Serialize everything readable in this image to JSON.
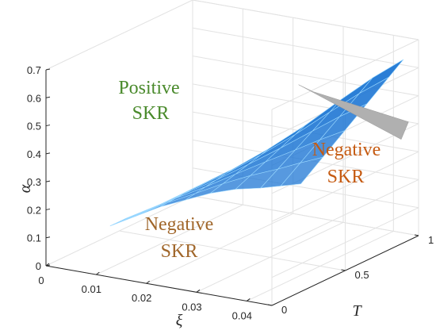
{
  "chart_data": {
    "type": "surface3d",
    "xlabel": "ξ",
    "ylabel": "T",
    "zlabel": "α",
    "xlim": [
      0,
      0.045
    ],
    "ylim": [
      0,
      1
    ],
    "zlim": [
      0,
      0.7
    ],
    "x_ticks": [
      "0",
      "0.01",
      "0.02",
      "0.03",
      "0.04"
    ],
    "y_ticks": [
      "0",
      "0.5",
      "1"
    ],
    "z_ticks": [
      "0",
      "0.1",
      "0.2",
      "0.3",
      "0.4",
      "0.5",
      "0.6",
      "0.7"
    ],
    "grid": true,
    "surface": {
      "xi_samples": [
        0.004,
        0.009,
        0.014,
        0.019,
        0.024,
        0.029,
        0.034,
        0.038,
        0.042
      ],
      "t_samples": [
        0.3,
        0.45,
        0.6,
        0.75,
        0.9,
        1.0
      ],
      "alpha_lower": [
        0.08,
        0.13,
        0.18,
        0.22,
        0.26,
        0.29,
        0.31,
        0.33,
        0.35
      ],
      "alpha_upper": [
        0.08,
        0.13,
        0.19,
        0.25,
        0.32,
        0.4,
        0.49,
        0.56,
        0.62
      ],
      "color": "#1f77d4",
      "edge_color": "#9ad8ff"
    },
    "cutoff_plane": {
      "xi": 0.043,
      "alpha_range": [
        0.35,
        0.72
      ],
      "color": "#b0b0b0"
    },
    "regions": [
      {
        "lines": [
          "Positive",
          "SKR"
        ],
        "color": "#4a8a2c"
      },
      {
        "lines": [
          "Negative",
          "SKR"
        ],
        "color": "#c55a11"
      },
      {
        "lines": [
          "Negative",
          "SKR"
        ],
        "color": "#a0662a"
      }
    ]
  }
}
